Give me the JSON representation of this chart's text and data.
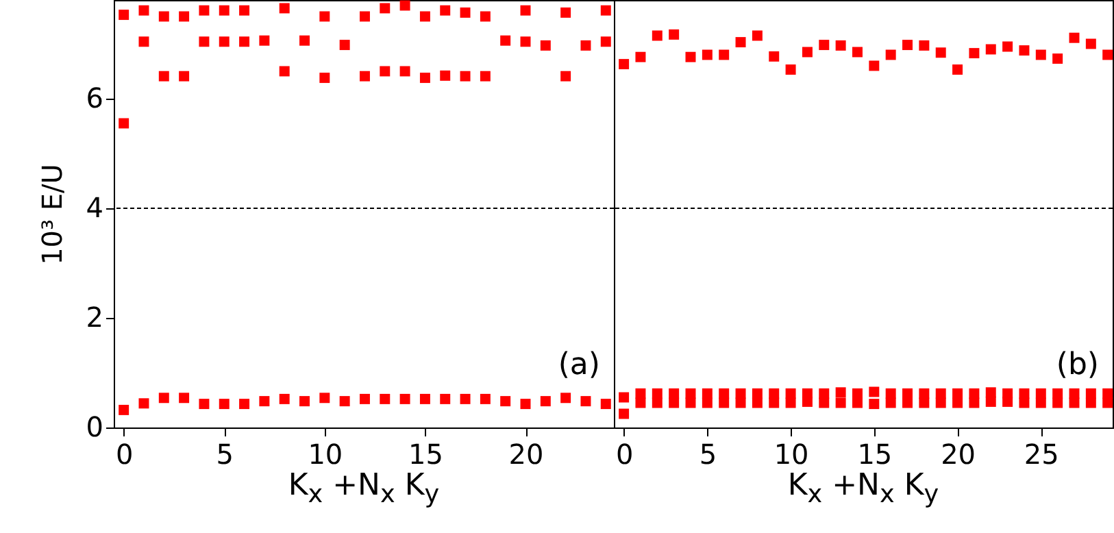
{
  "chart_data": [
    {
      "type": "scatter",
      "ylabel": "10³ E/U",
      "xlabel": "K$_{x}$ +N$_{x}$ K$_{y}$",
      "xlim": [
        -0.5,
        24.4
      ],
      "xticks": [
        0,
        5,
        10,
        15,
        20
      ],
      "ylim": [
        0,
        7.8
      ],
      "yticks": [
        0,
        2,
        4,
        6
      ],
      "marker": "square",
      "grid": false,
      "annotations": [
        "(a)"
      ],
      "ref_lines": [
        {
          "axis": "y",
          "value": 4,
          "color": "#000000",
          "line_style": "dashed"
        }
      ],
      "series": [
        {
          "color": "#ff0000",
          "x": [
            0,
            1,
            2,
            3,
            4,
            5,
            6,
            7,
            8,
            9,
            10,
            11,
            12,
            13,
            14,
            15,
            16,
            17,
            18,
            19,
            20,
            21,
            22,
            23,
            24
          ],
          "values": [
            7.53,
            7.61,
            7.5,
            7.5,
            7.61,
            7.61,
            7.61,
            7.06,
            7.65,
            7.06,
            7.5,
            6.98,
            7.5,
            7.65,
            7.7,
            7.5,
            7.61,
            7.57,
            7.5,
            7.06,
            7.61,
            6.97,
            7.57,
            6.97,
            7.61
          ]
        },
        {
          "color": "#ff0000",
          "x": [
            0,
            1,
            2,
            3,
            4,
            5,
            6,
            8,
            10,
            12,
            13,
            14,
            15,
            16,
            17,
            18,
            20,
            22,
            24
          ],
          "values": [
            5.55,
            7.04,
            6.41,
            6.41,
            7.04,
            7.04,
            7.04,
            6.5,
            6.38,
            6.41,
            6.5,
            6.5,
            6.38,
            6.42,
            6.41,
            6.41,
            7.04,
            6.41,
            7.04
          ]
        },
        {
          "color": "#ff0000",
          "x": [
            0,
            1,
            2,
            3,
            4,
            5,
            6,
            7,
            8,
            9,
            10,
            11,
            12,
            13,
            14,
            15,
            16,
            17,
            18,
            19,
            20,
            21,
            22,
            23,
            24
          ],
          "values": [
            0.32,
            0.44,
            0.54,
            0.54,
            0.43,
            0.43,
            0.43,
            0.48,
            0.52,
            0.48,
            0.54,
            0.48,
            0.52,
            0.52,
            0.52,
            0.52,
            0.52,
            0.52,
            0.52,
            0.48,
            0.43,
            0.48,
            0.54,
            0.48,
            0.43
          ]
        }
      ]
    },
    {
      "type": "scatter",
      "xlabel": "K$_{x}$ +N$_{x}$ K$_{y}$",
      "xlim": [
        -0.6,
        29.3
      ],
      "xticks": [
        0,
        5,
        10,
        15,
        20,
        25
      ],
      "ylim": [
        0,
        7.8
      ],
      "yticks": [
        0,
        2,
        4,
        6
      ],
      "tick_labels": "x",
      "marker": "square",
      "grid": false,
      "annotations": [
        "(b)"
      ],
      "ref_lines": [
        {
          "axis": "y",
          "value": 4,
          "color": "#000000",
          "line_style": "dashed"
        }
      ],
      "series": [
        {
          "color": "#ff0000",
          "x": [
            0,
            1,
            2,
            3,
            4,
            5,
            6,
            7,
            8,
            9,
            10,
            11,
            12,
            13,
            14,
            15,
            16,
            17,
            18,
            19,
            20,
            21,
            22,
            23,
            24,
            25,
            26,
            27,
            28,
            29
          ],
          "values": [
            6.63,
            6.76,
            7.15,
            7.17,
            6.76,
            6.8,
            6.8,
            7.03,
            7.15,
            6.77,
            6.53,
            6.85,
            6.98,
            6.97,
            6.85,
            6.6,
            6.8,
            6.98,
            6.97,
            6.84,
            6.53,
            6.83,
            6.9,
            6.95,
            6.88,
            6.8,
            6.73,
            7.11,
            7.0,
            6.8
          ]
        },
        {
          "color": "#ff0000",
          "x": [
            0,
            1,
            2,
            3,
            4,
            5,
            6,
            7,
            8,
            9,
            10,
            11,
            12,
            13,
            14,
            15,
            16,
            17,
            18,
            19,
            20,
            21,
            22,
            23,
            24,
            25,
            26,
            27,
            28,
            29
          ],
          "values": [
            0.55,
            0.62,
            0.62,
            0.62,
            0.62,
            0.62,
            0.62,
            0.62,
            0.62,
            0.62,
            0.62,
            0.62,
            0.62,
            0.64,
            0.62,
            0.65,
            0.62,
            0.62,
            0.62,
            0.62,
            0.62,
            0.62,
            0.64,
            0.62,
            0.62,
            0.62,
            0.62,
            0.62,
            0.62,
            0.62
          ]
        },
        {
          "color": "#ff0000",
          "x": [
            0,
            1,
            2,
            3,
            4,
            5,
            6,
            7,
            8,
            9,
            10,
            11,
            12,
            13,
            14,
            15,
            16,
            17,
            18,
            19,
            20,
            21,
            22,
            23,
            24,
            25,
            26,
            27,
            28,
            29
          ],
          "values": [
            0.25,
            0.45,
            0.45,
            0.45,
            0.45,
            0.45,
            0.45,
            0.45,
            0.45,
            0.45,
            0.45,
            0.47,
            0.45,
            0.45,
            0.45,
            0.43,
            0.45,
            0.45,
            0.45,
            0.45,
            0.45,
            0.45,
            0.47,
            0.47,
            0.45,
            0.45,
            0.45,
            0.45,
            0.45,
            0.45
          ]
        }
      ]
    }
  ]
}
